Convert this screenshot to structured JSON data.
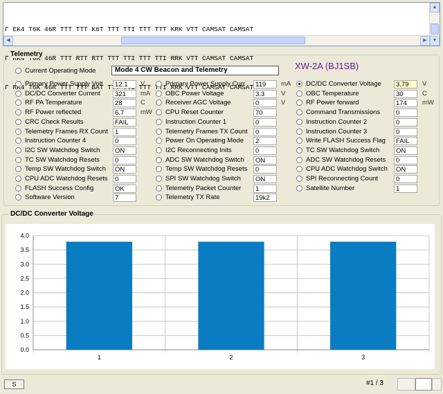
{
  "log": {
    "lines": [
      "Г EK4 T6K 46R TTT TTT K6T TTT TTI TTT TTT KRK VTT CAMSAT CAMSAT",
      "Г RK4 T6K 46R TTT RTT RTT TTT TTI TTT TTI RRK VTT CAMSAT CAMSAT",
      "Г RK4 T6K 46R TTT TTT BAT TTT TTI TTT TTI RRK VTT CAMSAT CAMSAT"
    ]
  },
  "telemetry": {
    "legend": "Telemetry",
    "mode_label": "Current Operating Mode",
    "mode_value": "Mode 4 CW Beacon and Telemetry",
    "satellite": "XW-2A (BJ1SB)",
    "col1": [
      {
        "label": "Primary Power Supply Volt",
        "value": "12.1",
        "unit": "V"
      },
      {
        "label": "DC/DC Converter Current",
        "value": "321",
        "unit": "mA"
      },
      {
        "label": "RF PA Temperature",
        "value": "28",
        "unit": "C"
      },
      {
        "label": "RF Power reflected",
        "value": "6.7",
        "unit": "mW"
      },
      {
        "label": "CRC Check Results",
        "value": "FAIL",
        "unit": ""
      },
      {
        "label": "Telemetry Frames RX Count",
        "value": "1",
        "unit": ""
      },
      {
        "label": "Instruction Counter 4",
        "value": "0",
        "unit": ""
      },
      {
        "label": "I2C SW Watchdog Switch",
        "value": "ON",
        "unit": ""
      },
      {
        "label": "TC SW Watchdog Resets",
        "value": "0",
        "unit": ""
      },
      {
        "label": "Temp SW Watchdog Switch",
        "value": "ON",
        "unit": ""
      },
      {
        "label": "CPU ADC Watchdog Resets",
        "value": "0",
        "unit": ""
      },
      {
        "label": "FLASH Success Config",
        "value": "OK",
        "unit": ""
      },
      {
        "label": "Software Version",
        "value": "7",
        "unit": ""
      }
    ],
    "col2": [
      {
        "label": "Primary Power Supply Curr",
        "value": "119",
        "unit": "mA"
      },
      {
        "label": "OBC Power Voltage",
        "value": "3.3",
        "unit": "V"
      },
      {
        "label": "Receiver AGC Voltage",
        "value": "0",
        "unit": "V"
      },
      {
        "label": "CPU Reset Counter",
        "value": "70",
        "unit": ""
      },
      {
        "label": "Instruction Counter 1",
        "value": "0",
        "unit": ""
      },
      {
        "label": "Telemetry Frames TX Count",
        "value": "0",
        "unit": ""
      },
      {
        "label": "Power On Operating Mode",
        "value": "2",
        "unit": ""
      },
      {
        "label": "I2C Reconnecting Inits",
        "value": "0",
        "unit": ""
      },
      {
        "label": "ADC SW Watchdog Switch",
        "value": "ON",
        "unit": ""
      },
      {
        "label": "Temp SW Watchdog Resets",
        "value": "0",
        "unit": ""
      },
      {
        "label": "SPI SW Watchdog Switch",
        "value": "ON",
        "unit": ""
      },
      {
        "label": "Telemetry Packet Counter",
        "value": "1",
        "unit": ""
      },
      {
        "label": "Telemetry TX Rate",
        "value": "19k2",
        "unit": ""
      }
    ],
    "col3": [
      {
        "label": "DC/DC Converter Voltage",
        "value": "3.79",
        "unit": "V",
        "selected": true
      },
      {
        "label": "OBC Temperature",
        "value": "30",
        "unit": "C"
      },
      {
        "label": "RF Power forward",
        "value": "174",
        "unit": "mW"
      },
      {
        "label": "Command Transmissions",
        "value": "0",
        "unit": ""
      },
      {
        "label": "Instruction Counter 2",
        "value": "0",
        "unit": ""
      },
      {
        "label": "Instruction Counter 3",
        "value": "0",
        "unit": ""
      },
      {
        "label": "Write FLASH Success Flag",
        "value": "FAIL",
        "unit": ""
      },
      {
        "label": "TC SW Watchdog Switch",
        "value": "ON",
        "unit": ""
      },
      {
        "label": "ADC SW Watchdog Resets",
        "value": "0",
        "unit": ""
      },
      {
        "label": "CPU ADC Watchdog Switch",
        "value": "ON",
        "unit": ""
      },
      {
        "label": "SPI Reconnecting Count",
        "value": "0",
        "unit": ""
      },
      {
        "label": "Satellite Number",
        "value": "1",
        "unit": ""
      }
    ]
  },
  "chart_panel": {
    "legend": "DC/DC Converter Voltage"
  },
  "chart_data": {
    "type": "bar",
    "categories": [
      "1",
      "2",
      "3"
    ],
    "values": [
      3.79,
      3.79,
      3.79
    ],
    "ylim": [
      0,
      4.0
    ],
    "yticks": [
      "0.0",
      "0.5",
      "1.0",
      "1.5",
      "2.0",
      "2.5",
      "3.0",
      "3.5",
      "4.0"
    ],
    "bar_color": "#0a7cc1",
    "grid": true
  },
  "footer": {
    "status_label": "S",
    "page_indicator": "#1 / 3"
  }
}
